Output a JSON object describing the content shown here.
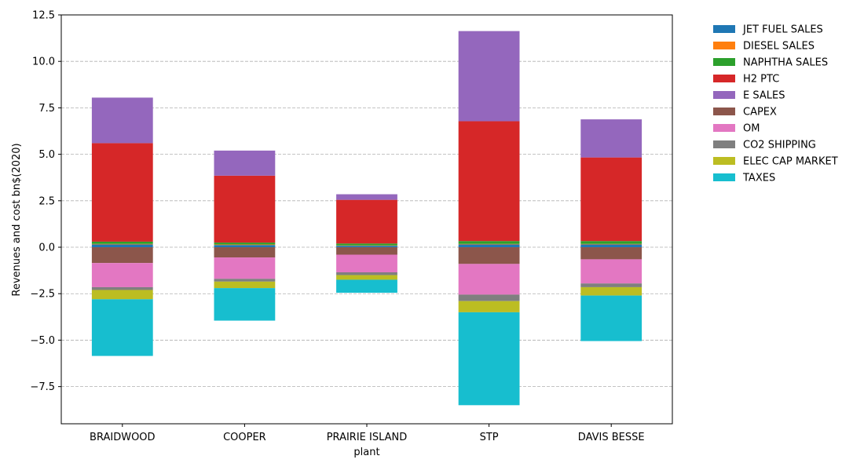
{
  "chart_data": {
    "type": "bar",
    "stacked": true,
    "xlabel": "plant",
    "ylabel": "Revenues and cost bn$(2020)",
    "ylim": [
      -9.5,
      12.5
    ],
    "yticks": [
      -7.5,
      -5.0,
      -2.5,
      0.0,
      2.5,
      5.0,
      7.5,
      10.0,
      12.5
    ],
    "ytick_labels": [
      "−7.5",
      "−5.0",
      "−2.5",
      "0.0",
      "2.5",
      "5.0",
      "7.5",
      "10.0",
      "12.5"
    ],
    "grid": "y, dashed",
    "legend_position": "outside right, top",
    "categories": [
      "BRAIDWOOD",
      "COOPER",
      "PRAIRIE ISLAND",
      "STP",
      "DAVIS BESSE"
    ],
    "series": [
      {
        "name": "JET FUEL SALES",
        "color": "#1f77b4",
        "values": [
          0.15,
          0.12,
          0.08,
          0.15,
          0.15
        ]
      },
      {
        "name": "DIESEL SALES",
        "color": "#ff7f0e",
        "values": [
          0.03,
          0.03,
          0.02,
          0.03,
          0.03
        ]
      },
      {
        "name": "NAPHTHA SALES",
        "color": "#2ca02c",
        "values": [
          0.12,
          0.1,
          0.1,
          0.15,
          0.15
        ]
      },
      {
        "name": "H2 PTC",
        "color": "#d62728",
        "values": [
          5.3,
          3.6,
          2.35,
          6.45,
          4.5
        ]
      },
      {
        "name": "E SALES",
        "color": "#9467bd",
        "values": [
          2.45,
          1.35,
          0.3,
          4.85,
          2.05
        ]
      },
      {
        "name": "CAPEX",
        "color": "#8c564b",
        "values": [
          -0.85,
          -0.55,
          -0.4,
          -0.9,
          -0.65
        ]
      },
      {
        "name": "OM",
        "color": "#e377c2",
        "values": [
          -1.3,
          -1.15,
          -0.95,
          -1.65,
          -1.3
        ]
      },
      {
        "name": "CO2 SHIPPING",
        "color": "#7f7f7f",
        "values": [
          -0.15,
          -0.15,
          -0.15,
          -0.35,
          -0.2
        ]
      },
      {
        "name": "ELEC CAP MARKET",
        "color": "#bcbd22",
        "values": [
          -0.5,
          -0.35,
          -0.25,
          -0.6,
          -0.45
        ]
      },
      {
        "name": "TAXES",
        "color": "#17becf",
        "values": [
          -3.05,
          -1.75,
          -0.7,
          -5.0,
          -2.45
        ]
      }
    ]
  }
}
